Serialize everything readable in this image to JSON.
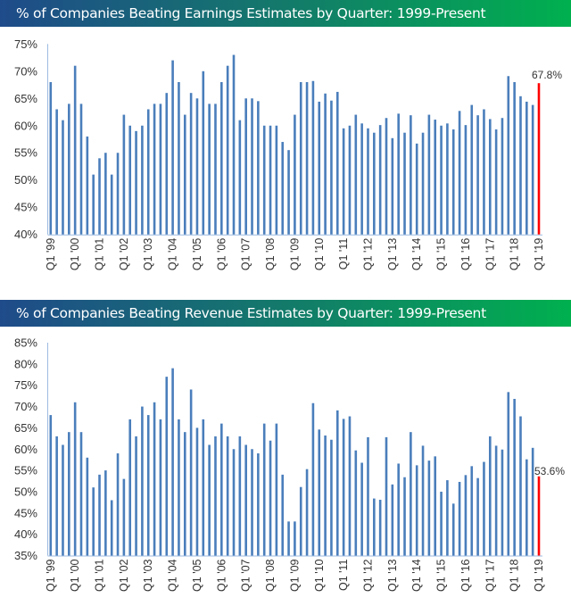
{
  "chart_data": [
    {
      "type": "bar",
      "title": "% of Companies Beating Earnings Estimates by Quarter: 1999-Present",
      "ylim": [
        40,
        75
      ],
      "yticks": [
        "40%",
        "45%",
        "50%",
        "55%",
        "60%",
        "65%",
        "70%",
        "75%"
      ],
      "xtick_labels": [
        "Q1 '99",
        "Q1 '00",
        "Q1 '01",
        "Q1 '02",
        "Q1 '03",
        "Q1 '04",
        "Q1 '05",
        "Q1 '06",
        "Q1 '07",
        "Q1 '08",
        "Q1 '09",
        "Q1 '10",
        "Q1 '11",
        "Q1 '12",
        "Q1 '13",
        "Q1 '14",
        "Q1 '15",
        "Q1 '16",
        "Q1 '17",
        "Q1 '18",
        "Q1 '19"
      ],
      "values": [
        68,
        63,
        61,
        64,
        71,
        64,
        58,
        51,
        54,
        55,
        51,
        55,
        62,
        60,
        59,
        60,
        63,
        64,
        64,
        66,
        72,
        68,
        62,
        66,
        65,
        70,
        64,
        64,
        68,
        71,
        73,
        61,
        65,
        65,
        64.5,
        60,
        60,
        60,
        57,
        55.5,
        62,
        68,
        68,
        68.2,
        64.4,
        65.9,
        64.6,
        66.2,
        59.5,
        60,
        62,
        60.4,
        59.5,
        58.7,
        60.1,
        61.4,
        57.7,
        62.2,
        58.7,
        61.9,
        56.7,
        58.7,
        62,
        61.1,
        60,
        60.4,
        59.3,
        62.7,
        60.1,
        63.8,
        61.9,
        63,
        61.2,
        59.3,
        61.4,
        69.1,
        68,
        65.4,
        64.4,
        63.8,
        67.8
      ],
      "last_label": "67.8%",
      "bar_color": "#4a7ebb",
      "highlight_color": "#ff0000",
      "grid": false
    },
    {
      "type": "bar",
      "title": "% of Companies Beating Revenue Estimates by Quarter: 1999-Present",
      "ylim": [
        35,
        85
      ],
      "yticks": [
        "35%",
        "40%",
        "45%",
        "50%",
        "55%",
        "60%",
        "65%",
        "70%",
        "75%",
        "80%",
        "85%"
      ],
      "xtick_labels": [
        "Q1 '99",
        "Q1 '00",
        "Q1 '01",
        "Q1 '02",
        "Q1 '03",
        "Q1 '04",
        "Q1 '05",
        "Q1 '06",
        "Q1 '07",
        "Q1 '08",
        "Q1 '09",
        "Q1 '10",
        "Q1 '11",
        "Q1 '12",
        "Q1 '13",
        "Q1 '14",
        "Q1 '15",
        "Q1 '16",
        "Q1 '17",
        "Q1 '18",
        "Q1 '19"
      ],
      "values": [
        68,
        63,
        61,
        64,
        71,
        64,
        58,
        51,
        54,
        55,
        48,
        59,
        53,
        67,
        63,
        70,
        68,
        71,
        67,
        77,
        79,
        67,
        64,
        74,
        65,
        67,
        61,
        63,
        66,
        63,
        60,
        63,
        61,
        60,
        59,
        66,
        62,
        66,
        54,
        43,
        43,
        51.1,
        55.3,
        70.8,
        64.6,
        63.2,
        62.2,
        69.1,
        67.1,
        67.7,
        59.7,
        56.8,
        62.8,
        48.4,
        48.1,
        62.8,
        51.7,
        56.6,
        53.4,
        64,
        56.2,
        60.8,
        57.3,
        58.3,
        50,
        52.7,
        47.2,
        52.3,
        53.9,
        56,
        53.2,
        57,
        63,
        60.8,
        59.9,
        73.4,
        71.8,
        67.7,
        57.6,
        60.3,
        53.6
      ],
      "last_label": "53.6%",
      "bar_color": "#4a7ebb",
      "highlight_color": "#ff0000",
      "grid": false
    }
  ]
}
